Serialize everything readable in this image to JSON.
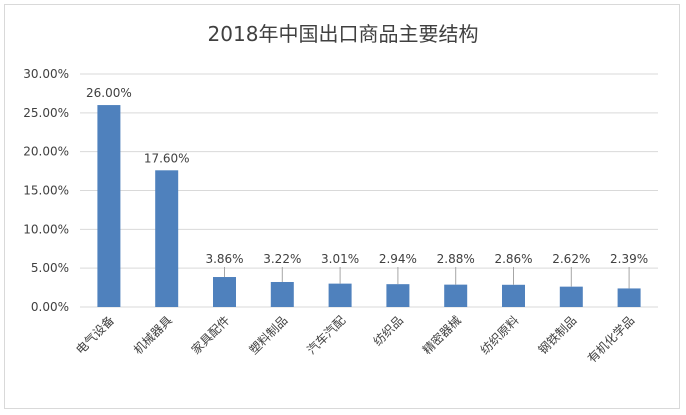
{
  "chart_data": {
    "type": "bar",
    "title": "2018年中国出口商品主要结构",
    "categories": [
      "电气设备",
      "机械器具",
      "家具配件",
      "塑料制品",
      "汽车汽配",
      "纺织品",
      "精密器械",
      "纺织原料",
      "钢铁制品",
      "有机化学品"
    ],
    "values": [
      26.0,
      17.6,
      3.86,
      3.22,
      3.01,
      2.94,
      2.88,
      2.86,
      2.62,
      2.39
    ],
    "data_labels": [
      "26.00%",
      "17.60%",
      "3.86%",
      "3.22%",
      "3.01%",
      "2.94%",
      "2.88%",
      "2.86%",
      "2.62%",
      "2.39%"
    ],
    "y_ticks": [
      0,
      5,
      10,
      15,
      20,
      25,
      30
    ],
    "y_tick_labels": [
      "0.00%",
      "5.00%",
      "10.00%",
      "15.00%",
      "20.00%",
      "25.00%",
      "30.00%"
    ],
    "ylim": [
      0,
      30
    ],
    "grid": true,
    "bar_color": "#4f81bd",
    "grid_color": "#d9d9d9"
  }
}
